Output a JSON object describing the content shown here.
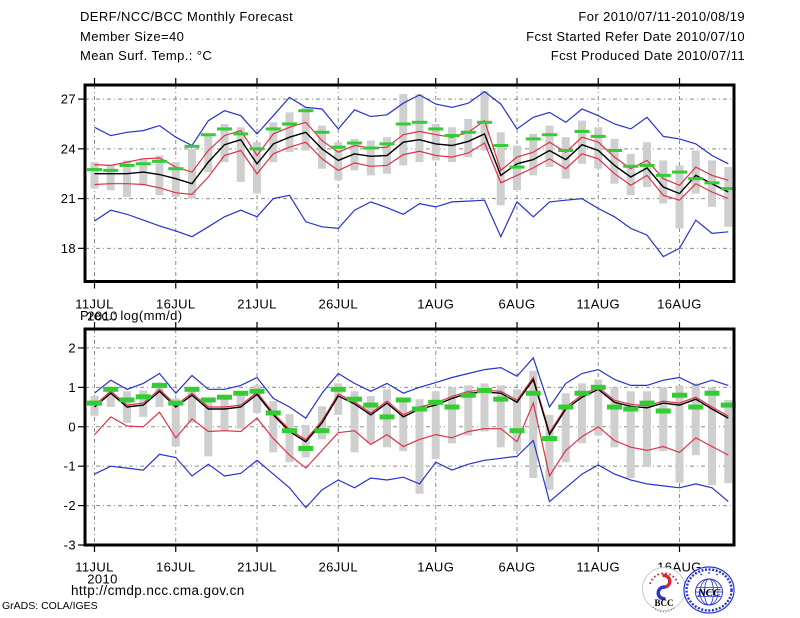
{
  "header": {
    "left_lines": [
      "DERF/NCC/BCC Monthly Forecast",
      "Member Size=40"
    ],
    "right_lines": [
      "For 2010/07/11-2010/08/19",
      "Fcst Started Refer Date 2010/07/10",
      "Fcst Produced Date 2010/07/11"
    ]
  },
  "footer": {
    "url": "http://cmdp.ncc.cma.gov.cn",
    "credit": "GrADS: COLA/IGES",
    "logos": [
      {
        "name": "BCC",
        "label": "BCC"
      },
      {
        "name": "NCC",
        "label": "NCC"
      }
    ]
  },
  "colors": {
    "max_min": "#2633d0",
    "spread": "#e23048",
    "mean": "#000000",
    "obs": "#33cc33",
    "bar": "#cfcfcf",
    "grid": "#8a8a8a",
    "frame": "#000000"
  },
  "chart_data": [
    {
      "type": "line",
      "title": "Mean Surf. Temp.: °C",
      "x_tick_labels": [
        "11JUL",
        "16JUL",
        "21JUL",
        "26JUL",
        "1AUG",
        "6AUG",
        "11AUG",
        "16AUG"
      ],
      "x_tick_days": [
        0,
        5,
        10,
        15,
        21,
        26,
        31,
        36
      ],
      "x_year_label": "2010",
      "n_points": 40,
      "ylim": [
        16.0,
        27.85
      ],
      "yticks": [
        18,
        21,
        24,
        27
      ],
      "grid": true,
      "legend": null,
      "series": [
        {
          "name": "ensemble-max",
          "color_key": "max_min",
          "values": [
            25.3,
            24.8,
            25.0,
            25.1,
            25.4,
            24.7,
            24.2,
            25.7,
            26.3,
            26.0,
            24.9,
            26.0,
            27.1,
            26.5,
            26.4,
            25.2,
            26.35,
            25.95,
            26.05,
            26.75,
            27.25,
            26.7,
            26.5,
            26.75,
            27.45,
            26.7,
            25.2,
            25.9,
            26.2,
            25.6,
            26.4,
            26.0,
            25.5,
            25.2,
            25.9,
            24.75,
            24.6,
            24.3,
            23.6,
            23.1
          ]
        },
        {
          "name": "spread-upper",
          "color_key": "spread",
          "values": [
            23.05,
            23.0,
            23.2,
            23.4,
            23.45,
            22.9,
            22.6,
            23.9,
            24.8,
            25.1,
            23.6,
            24.9,
            25.3,
            25.6,
            24.5,
            23.8,
            24.2,
            24.05,
            24.1,
            24.85,
            25.05,
            24.85,
            24.7,
            25.0,
            25.7,
            22.7,
            23.5,
            23.8,
            24.4,
            23.8,
            24.7,
            24.4,
            23.5,
            22.8,
            23.3,
            22.2,
            21.8,
            22.9,
            22.4,
            22.1
          ]
        },
        {
          "name": "ensemble-mean",
          "color_key": "mean",
          "values": [
            22.5,
            22.5,
            22.5,
            22.6,
            22.45,
            22.2,
            21.9,
            23.2,
            24.25,
            24.55,
            23.1,
            24.3,
            24.7,
            25.0,
            24.0,
            23.3,
            23.7,
            23.55,
            23.6,
            24.4,
            24.55,
            24.3,
            24.2,
            24.45,
            24.9,
            22.4,
            23.1,
            23.35,
            23.9,
            23.35,
            24.25,
            23.9,
            23.0,
            22.3,
            22.85,
            21.7,
            21.3,
            22.4,
            21.9,
            21.4
          ]
        },
        {
          "name": "spread-lower",
          "color_key": "spread",
          "values": [
            21.85,
            21.9,
            21.9,
            21.85,
            21.65,
            21.35,
            21.25,
            22.3,
            23.6,
            23.9,
            22.5,
            23.7,
            24.1,
            24.4,
            23.4,
            22.7,
            23.15,
            22.95,
            23.0,
            23.65,
            23.85,
            23.6,
            23.5,
            23.75,
            24.35,
            21.95,
            22.4,
            22.85,
            23.4,
            22.8,
            23.7,
            23.4,
            22.5,
            21.8,
            22.4,
            21.2,
            20.9,
            21.9,
            21.4,
            21.0
          ]
        },
        {
          "name": "ensemble-min",
          "color_key": "max_min",
          "values": [
            19.65,
            20.3,
            20.05,
            19.7,
            19.35,
            19.05,
            18.7,
            19.3,
            19.9,
            20.3,
            19.9,
            21.0,
            21.2,
            19.6,
            19.3,
            19.2,
            20.3,
            20.8,
            20.45,
            20.05,
            20.7,
            20.5,
            20.8,
            20.85,
            20.9,
            18.7,
            20.8,
            19.9,
            20.8,
            20.9,
            21.0,
            20.4,
            19.9,
            19.2,
            18.8,
            17.5,
            18.0,
            19.7,
            18.9,
            19.0
          ]
        }
      ],
      "obs_dashes": {
        "name": "daily-observation",
        "color_key": "obs",
        "values": [
          22.75,
          22.7,
          23.0,
          23.1,
          23.25,
          22.8,
          24.15,
          24.85,
          25.2,
          24.9,
          24.0,
          25.2,
          25.5,
          26.3,
          25.0,
          24.1,
          24.35,
          24.05,
          24.3,
          25.5,
          25.6,
          25.2,
          24.8,
          25.0,
          25.6,
          24.2,
          22.9,
          24.6,
          24.85,
          23.9,
          25.05,
          24.75,
          23.9,
          22.95,
          23.0,
          22.4,
          22.6,
          22.2,
          21.95,
          21.6
        ]
      },
      "spread_bars": {
        "name": "member-spread",
        "color_key": "bar",
        "lo": [
          21.6,
          21.5,
          21.1,
          21.8,
          21.2,
          21.1,
          21.0,
          22.6,
          23.2,
          22.0,
          21.3,
          23.2,
          23.8,
          23.9,
          22.8,
          22.1,
          22.7,
          22.4,
          22.5,
          23.0,
          23.2,
          23.3,
          23.2,
          23.5,
          23.9,
          20.6,
          21.5,
          22.4,
          22.9,
          22.2,
          23.1,
          22.8,
          21.9,
          21.2,
          21.7,
          20.7,
          19.2,
          21.3,
          20.5,
          19.3
        ],
        "hi": [
          23.2,
          23.0,
          23.3,
          23.4,
          23.6,
          23.2,
          24.0,
          24.8,
          25.5,
          25.3,
          24.4,
          25.6,
          26.2,
          26.5,
          25.4,
          24.4,
          24.6,
          24.5,
          24.7,
          27.3,
          27.3,
          25.5,
          25.3,
          25.8,
          27.5,
          25.0,
          24.2,
          24.9,
          25.4,
          24.7,
          25.7,
          25.3,
          24.6,
          23.7,
          24.4,
          23.3,
          23.0,
          23.9,
          23.3,
          22.9
        ]
      }
    },
    {
      "type": "line",
      "title": "Prec.: log(mm/d)",
      "x_tick_labels": [
        "11JUL",
        "16JUL",
        "21JUL",
        "26JUL",
        "1AUG",
        "6AUG",
        "11AUG",
        "16AUG"
      ],
      "x_tick_days": [
        0,
        5,
        10,
        15,
        21,
        26,
        31,
        36
      ],
      "x_year_label": "2010",
      "n_points": 40,
      "ylim": [
        -3.0,
        2.48
      ],
      "yticks": [
        -3,
        -2,
        -1,
        0,
        1,
        2
      ],
      "grid": true,
      "legend": null,
      "series": [
        {
          "name": "ensemble-max",
          "color_key": "max_min",
          "values": [
            0.85,
            1.18,
            0.95,
            1.1,
            1.35,
            0.85,
            1.3,
            0.95,
            0.95,
            1.05,
            1.25,
            0.72,
            0.5,
            0.22,
            0.85,
            1.35,
            1.1,
            0.9,
            1.1,
            0.85,
            1.0,
            1.12,
            1.25,
            1.35,
            1.45,
            1.5,
            1.28,
            1.75,
            0.5,
            1.1,
            1.35,
            1.45,
            1.2,
            1.05,
            1.05,
            1.18,
            1.25,
            1.05,
            1.18,
            1.05
          ]
        },
        {
          "name": "spread-upper",
          "color_key": "spread",
          "values": [
            0.55,
            0.9,
            0.55,
            0.6,
            0.95,
            0.55,
            0.85,
            0.5,
            0.5,
            0.55,
            0.87,
            0.35,
            -0.07,
            -0.33,
            0.15,
            0.83,
            0.63,
            0.35,
            0.65,
            0.3,
            0.5,
            0.6,
            0.77,
            0.9,
            0.93,
            0.9,
            0.67,
            1.25,
            -0.15,
            0.5,
            0.8,
            1.0,
            0.67,
            0.57,
            0.53,
            0.65,
            0.6,
            0.75,
            0.5,
            0.27
          ]
        },
        {
          "name": "ensemble-mean",
          "color_key": "mean",
          "values": [
            0.5,
            0.85,
            0.5,
            0.55,
            0.9,
            0.5,
            0.8,
            0.45,
            0.45,
            0.5,
            0.82,
            0.3,
            -0.12,
            -0.38,
            0.1,
            0.78,
            0.58,
            0.3,
            0.6,
            0.25,
            0.45,
            0.55,
            0.72,
            0.85,
            0.88,
            0.85,
            0.62,
            1.2,
            -0.2,
            0.45,
            0.75,
            0.95,
            0.62,
            0.52,
            0.48,
            0.6,
            0.55,
            0.7,
            0.45,
            0.22
          ]
        },
        {
          "name": "spread-lower",
          "color_key": "spread",
          "values": [
            -0.2,
            0.25,
            0.02,
            0.0,
            0.37,
            -0.28,
            0.2,
            -0.12,
            -0.1,
            -0.12,
            0.22,
            -0.3,
            -0.72,
            -1.05,
            -0.6,
            -0.15,
            -0.1,
            -0.45,
            -0.2,
            -0.5,
            -0.32,
            -0.2,
            -0.28,
            -0.12,
            -0.05,
            -0.05,
            -0.38,
            0.6,
            -1.25,
            -0.6,
            -0.25,
            0.0,
            -0.35,
            -0.52,
            -0.6,
            -0.5,
            -0.65,
            -0.28,
            -0.5,
            -0.72
          ]
        },
        {
          "name": "ensemble-min",
          "color_key": "max_min",
          "values": [
            -1.2,
            -1.0,
            -1.05,
            -1.1,
            -0.7,
            -0.78,
            -1.25,
            -0.95,
            -1.25,
            -1.18,
            -0.85,
            -1.2,
            -1.55,
            -2.05,
            -1.6,
            -1.35,
            -1.55,
            -1.3,
            -1.35,
            -1.28,
            -1.45,
            -0.9,
            -1.1,
            -0.95,
            -0.85,
            -0.8,
            -0.75,
            -0.35,
            -1.9,
            -1.55,
            -1.2,
            -0.97,
            -1.2,
            -1.35,
            -1.45,
            -1.5,
            -1.55,
            -1.45,
            -1.55,
            -1.9
          ]
        }
      ],
      "obs_dashes": {
        "name": "daily-observation",
        "color_key": "obs",
        "values": [
          0.6,
          0.95,
          0.68,
          0.76,
          1.05,
          0.6,
          0.95,
          0.68,
          0.75,
          0.85,
          0.9,
          0.35,
          -0.1,
          -0.55,
          -0.1,
          0.95,
          0.7,
          0.55,
          0.25,
          0.68,
          0.45,
          0.62,
          0.5,
          0.8,
          0.92,
          0.7,
          -0.1,
          0.85,
          -0.3,
          0.5,
          0.85,
          1.0,
          0.5,
          0.45,
          0.6,
          0.4,
          0.8,
          0.5,
          0.85,
          0.55
        ]
      },
      "spread_bars": {
        "name": "member-spread",
        "color_key": "bar",
        "lo": [
          0.28,
          0.5,
          0.1,
          0.25,
          0.5,
          -0.5,
          0.1,
          -0.75,
          -0.12,
          -0.05,
          0.35,
          -0.65,
          -0.9,
          -0.78,
          -0.32,
          0.3,
          -0.65,
          -0.42,
          -0.52,
          -0.62,
          -1.7,
          -0.82,
          -0.42,
          -0.22,
          -0.12,
          -0.52,
          -0.62,
          -1.3,
          -1.6,
          -0.9,
          -0.42,
          -0.22,
          -0.52,
          -1.3,
          -1.02,
          -0.62,
          -1.42,
          -0.72,
          -1.48,
          -1.43
        ],
        "hi": [
          0.78,
          1.02,
          0.9,
          0.92,
          1.12,
          0.72,
          1.0,
          0.7,
          0.8,
          0.85,
          1.05,
          0.65,
          0.32,
          0.05,
          0.52,
          1.1,
          0.9,
          0.78,
          0.95,
          0.7,
          0.7,
          0.9,
          1.0,
          1.05,
          1.1,
          1.05,
          0.95,
          1.42,
          0.3,
          0.85,
          1.1,
          1.2,
          1.0,
          0.9,
          0.9,
          1.0,
          1.05,
          1.1,
          1.0,
          0.68
        ]
      }
    }
  ]
}
